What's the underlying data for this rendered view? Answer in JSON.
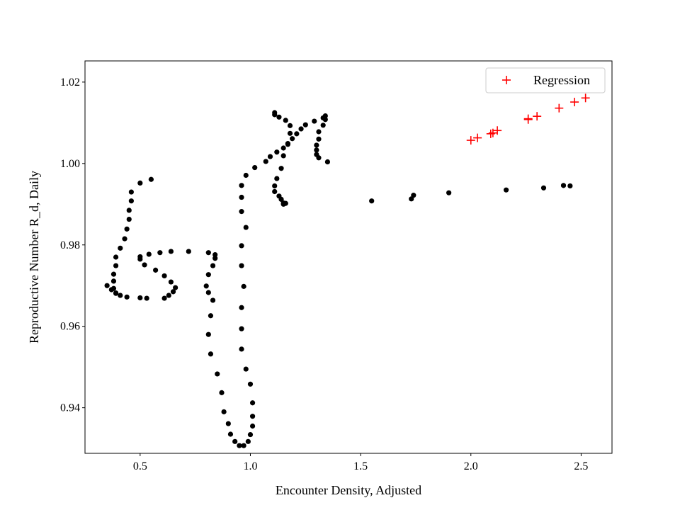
{
  "chart_data": {
    "type": "scatter",
    "title": "",
    "xlabel": "Encounter Density, Adjusted",
    "ylabel": "Reproductive Number R_d, Daily",
    "xlim": [
      0.25,
      2.64
    ],
    "ylim": [
      0.9288,
      1.0252
    ],
    "xticks": [
      0.5,
      1.0,
      1.5,
      2.0,
      2.5
    ],
    "xtick_labels": [
      "0.5",
      "1.0",
      "1.5",
      "2.0",
      "2.5"
    ],
    "yticks": [
      0.94,
      0.96,
      0.98,
      1.0,
      1.02
    ],
    "ytick_labels": [
      "0.94",
      "0.96",
      "0.98",
      "1.00",
      "1.02"
    ],
    "grid": false,
    "legend": {
      "placement": "top-right",
      "entries": [
        "Regression"
      ]
    },
    "series": [
      {
        "marker": "dot",
        "color": "#000000",
        "x": [
          0.35,
          0.37,
          0.39,
          0.41,
          0.44,
          0.5,
          0.53,
          0.61,
          0.63,
          0.65,
          0.66,
          0.64,
          0.61,
          0.57,
          0.52,
          0.5,
          0.5,
          0.54,
          0.59,
          0.64,
          0.72,
          0.81,
          0.84,
          0.84,
          0.83,
          0.81,
          0.8,
          0.81,
          0.83,
          0.82,
          0.81,
          0.82,
          0.85,
          0.87,
          0.88,
          0.9,
          0.91,
          0.93,
          0.95,
          0.97,
          0.99,
          1.0,
          1.01,
          1.01,
          1.01,
          1.0,
          0.98,
          0.96,
          0.96,
          0.96,
          0.97,
          0.96,
          0.96,
          0.98,
          0.96,
          0.96,
          0.96,
          0.98,
          1.02,
          1.07,
          1.09,
          1.12,
          1.15,
          1.17,
          1.19,
          1.21,
          1.23,
          1.25,
          1.29,
          1.33,
          1.34,
          1.34,
          1.33,
          1.31,
          1.31,
          1.3,
          1.3,
          1.3,
          1.31,
          1.35,
          1.16,
          1.15,
          1.15,
          1.14,
          1.13,
          1.11,
          1.11,
          1.12,
          1.14,
          1.15,
          1.17,
          1.18,
          1.18,
          1.16,
          1.13,
          1.11,
          1.11,
          1.55,
          1.73,
          1.74,
          1.9,
          2.16,
          2.33,
          2.42,
          2.45,
          0.39,
          0.38,
          0.38,
          0.38,
          0.39,
          0.39,
          0.41,
          0.43,
          0.44,
          0.45,
          0.45,
          0.46,
          0.46,
          0.5,
          0.55
        ],
        "y": [
          0.97,
          0.969,
          0.9682,
          0.9676,
          0.9672,
          0.967,
          0.9669,
          0.9669,
          0.9676,
          0.9685,
          0.9695,
          0.9709,
          0.9724,
          0.9738,
          0.9751,
          0.9765,
          0.9771,
          0.9777,
          0.9781,
          0.9784,
          0.9784,
          0.9781,
          0.9776,
          0.9767,
          0.9749,
          0.9727,
          0.9699,
          0.9683,
          0.9664,
          0.9626,
          0.958,
          0.9532,
          0.9483,
          0.9437,
          0.939,
          0.9361,
          0.9335,
          0.9317,
          0.9307,
          0.9307,
          0.9317,
          0.9334,
          0.9355,
          0.9379,
          0.9412,
          0.9458,
          0.9495,
          0.9544,
          0.9594,
          0.9646,
          0.9698,
          0.9749,
          0.9798,
          0.9843,
          0.9882,
          0.9917,
          0.9946,
          0.9971,
          0.999,
          1.0005,
          1.0017,
          1.0028,
          1.0038,
          1.0049,
          1.0061,
          1.0073,
          1.0085,
          1.0095,
          1.0104,
          1.0112,
          1.0117,
          1.0108,
          1.0094,
          1.0078,
          1.006,
          1.0045,
          1.0033,
          1.0022,
          1.0014,
          1.0004,
          0.9902,
          0.99,
          0.9903,
          0.9912,
          0.992,
          0.9931,
          0.9945,
          0.9963,
          0.9988,
          1.0019,
          1.0047,
          1.0074,
          1.0093,
          1.0106,
          1.0114,
          1.012,
          1.0125,
          0.9908,
          0.9913,
          0.9922,
          0.9928,
          0.9935,
          0.994,
          0.9946,
          0.9945,
          0.9681,
          0.9693,
          0.9711,
          0.9728,
          0.9749,
          0.977,
          0.9792,
          0.9815,
          0.9839,
          0.9863,
          0.9885,
          0.9908,
          0.993,
          0.9952,
          0.9961
        ]
      },
      {
        "name": "Regression",
        "marker": "plus",
        "color": "#ff0000",
        "x": [
          2.0,
          2.03,
          2.09,
          2.1,
          2.12,
          2.26,
          2.26,
          2.3,
          2.4,
          2.47,
          2.52
        ],
        "y": [
          1.0057,
          1.0063,
          1.0073,
          1.0075,
          1.0081,
          1.0108,
          1.011,
          1.0116,
          1.0136,
          1.0151,
          1.0161
        ]
      }
    ]
  }
}
